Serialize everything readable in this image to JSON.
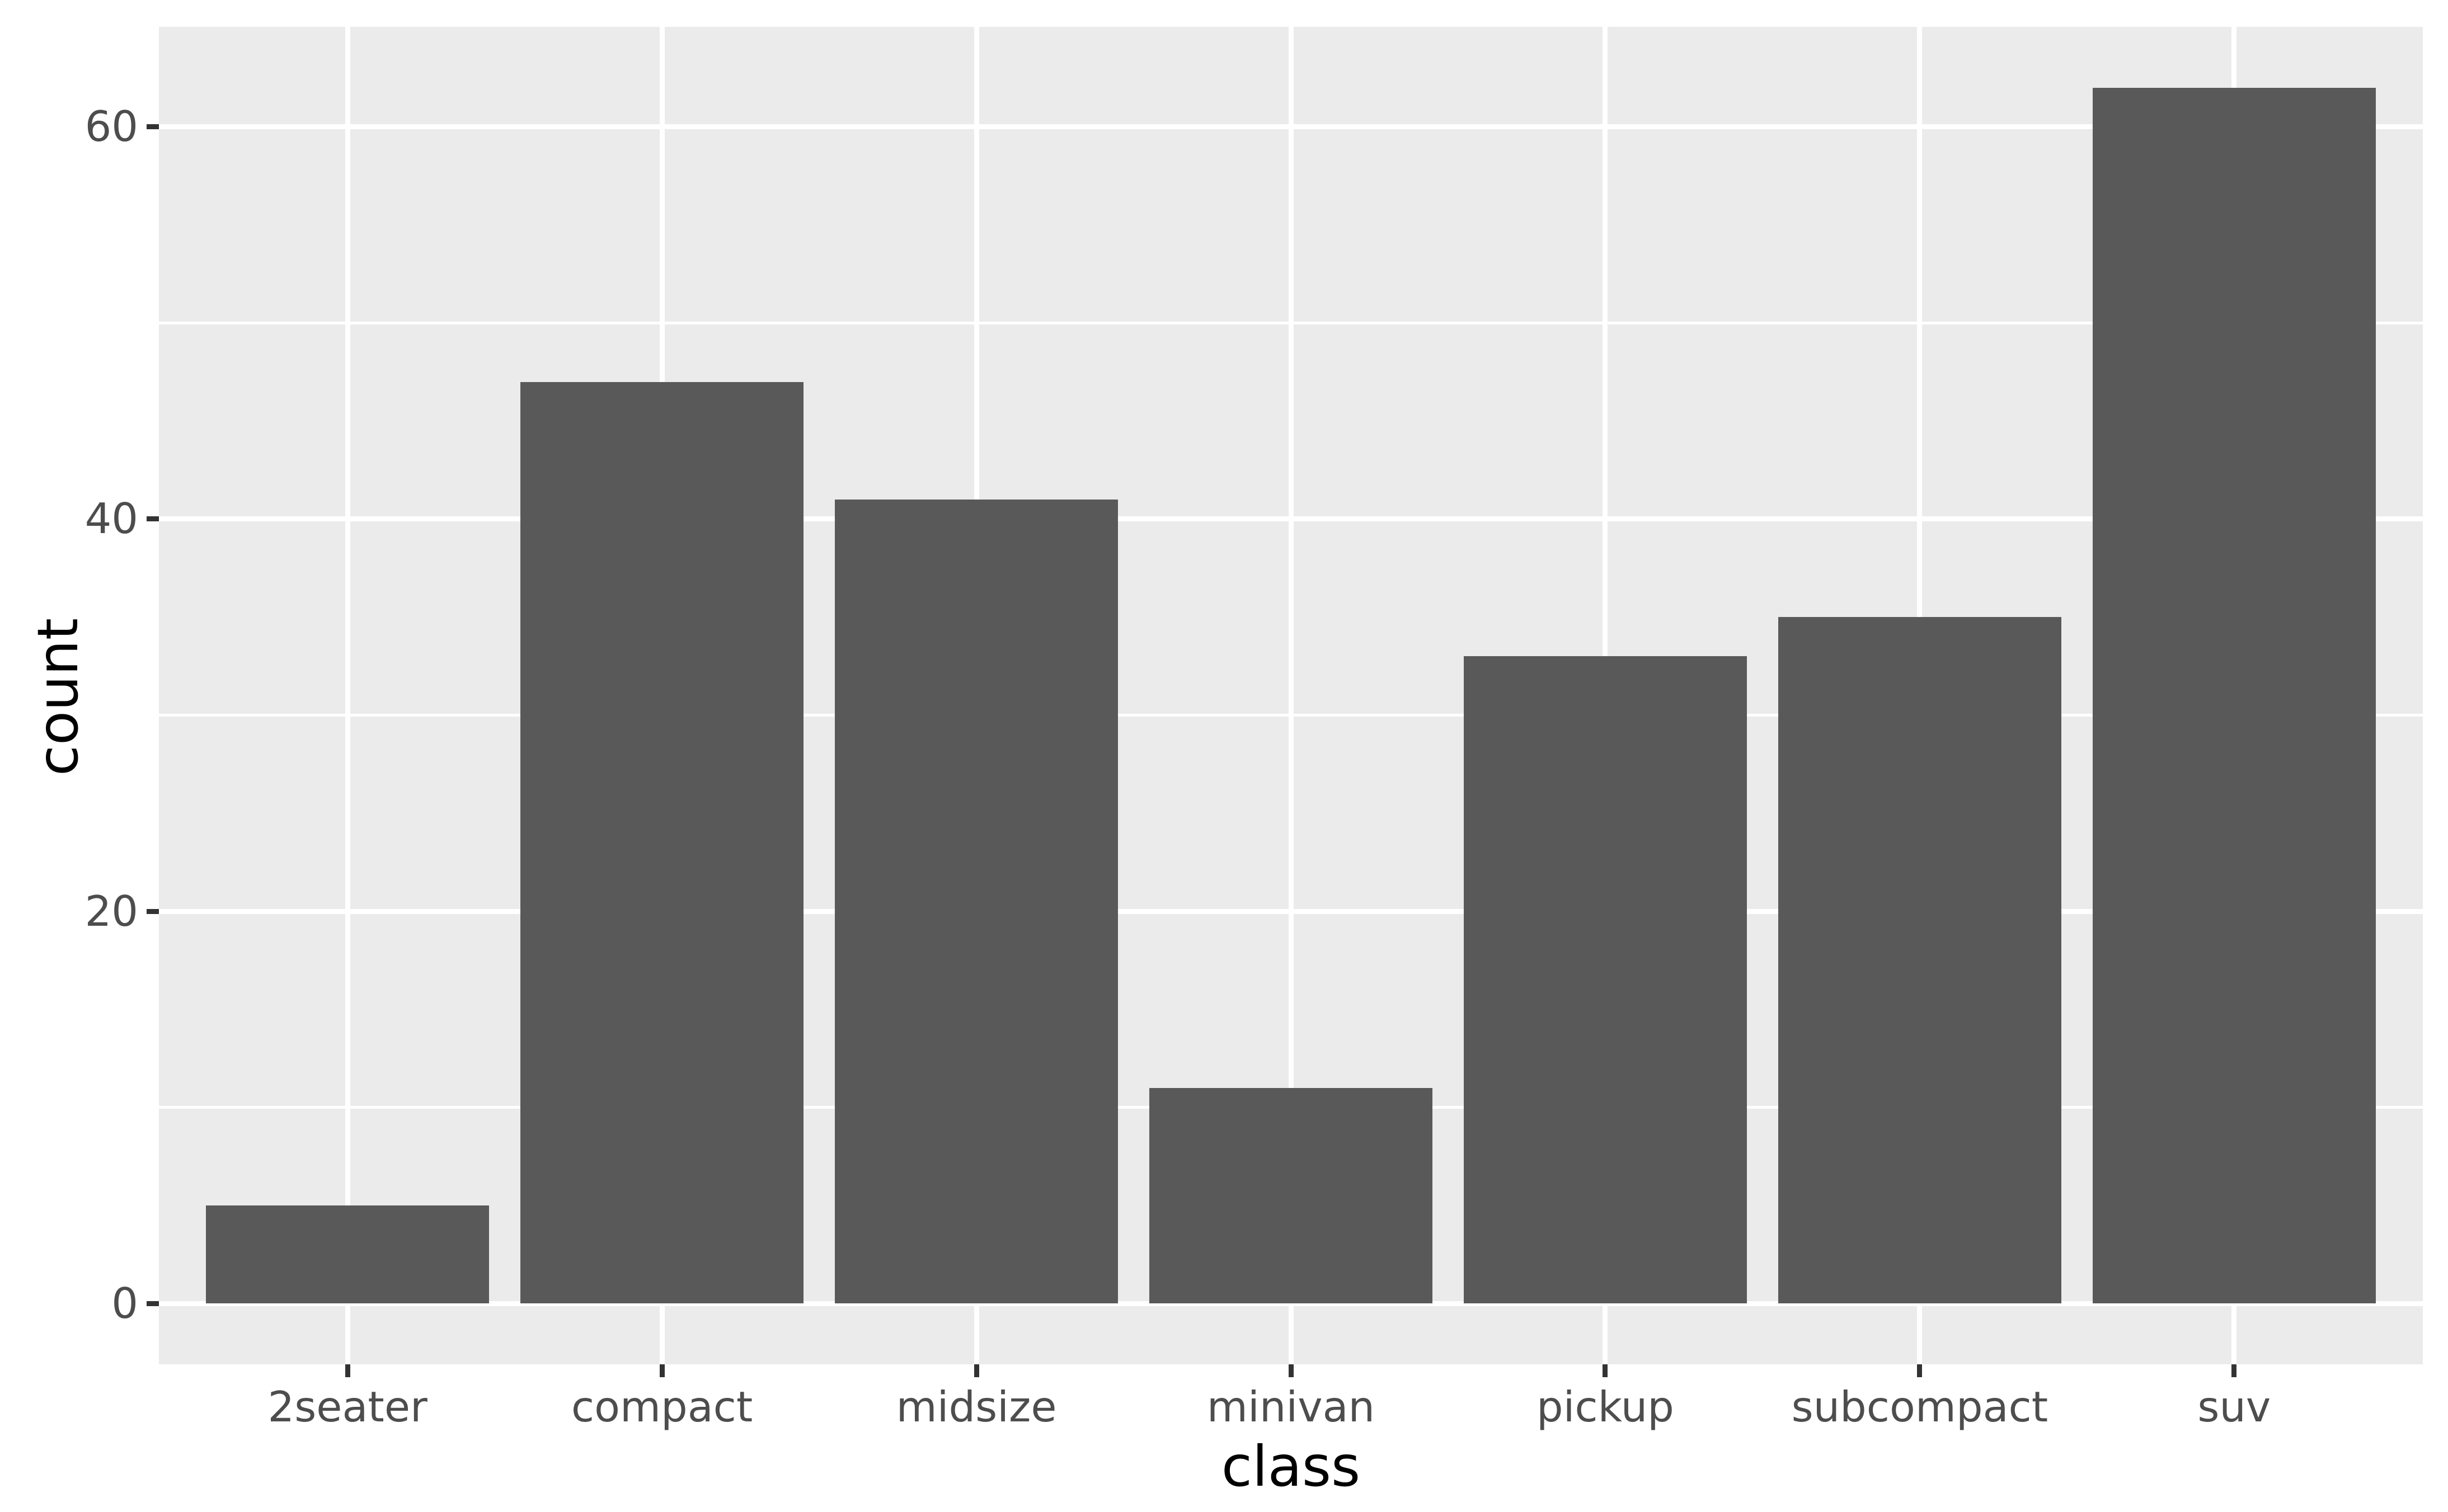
{
  "chart_data": {
    "type": "bar",
    "title": "",
    "xlabel": "class",
    "ylabel": "count",
    "categories": [
      "2seater",
      "compact",
      "midsize",
      "minivan",
      "pickup",
      "subcompact",
      "suv"
    ],
    "values": [
      5,
      47,
      41,
      11,
      33,
      35,
      62
    ],
    "y_tick_values": [
      0,
      20,
      40,
      60
    ],
    "y_tick_labels": [
      "0",
      "20",
      "40",
      "60"
    ],
    "y_minor_tick_values": [
      10,
      30,
      50
    ],
    "ylim": [
      -3.1,
      65.1
    ],
    "xlim_units": [
      0.4,
      7.6
    ],
    "bar_rel_width": 0.9,
    "grid": "horizontal major+minor, vertical major at category centers",
    "legend": "none",
    "style": "ggplot2-grey-theme",
    "colors": {
      "bar": "#595959",
      "panel_bg": "#EBEBEB",
      "gridline": "#FFFFFF",
      "tick_mark": "#333333",
      "tick_label": "#4D4D4D",
      "axis_title": "#000000",
      "background": "#FFFFFF"
    }
  }
}
